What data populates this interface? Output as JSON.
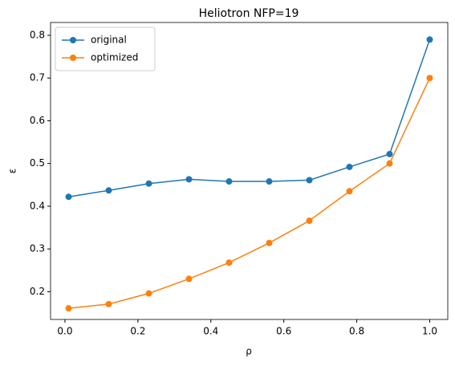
{
  "chart_data": {
    "type": "line",
    "title": "Heliotron NFP=19",
    "xlabel": "ρ",
    "ylabel": "ε",
    "x": [
      0.01,
      0.12,
      0.23,
      0.34,
      0.45,
      0.56,
      0.67,
      0.78,
      0.89,
      1.0
    ],
    "series": [
      {
        "name": "original",
        "color": "#1f77b4",
        "values": [
          0.422,
          0.437,
          0.453,
          0.463,
          0.458,
          0.458,
          0.461,
          0.492,
          0.522,
          0.79
        ]
      },
      {
        "name": "optimized",
        "color": "#ff7f0e",
        "values": [
          0.161,
          0.171,
          0.196,
          0.23,
          0.268,
          0.314,
          0.366,
          0.435,
          0.5,
          0.7
        ]
      }
    ],
    "xlim": [
      -0.0395,
      1.0495
    ],
    "ylim": [
      0.135,
      0.83
    ],
    "xticks": [
      {
        "value": 0,
        "label": "0.0"
      },
      0.2,
      0.4,
      0.6,
      0.8,
      {
        "value": 1,
        "label": "1.0"
      }
    ],
    "yticks": [
      0.2,
      0.3,
      0.4,
      0.5,
      0.6,
      0.7,
      0.8
    ],
    "legend": "upper left",
    "grid": false
  }
}
